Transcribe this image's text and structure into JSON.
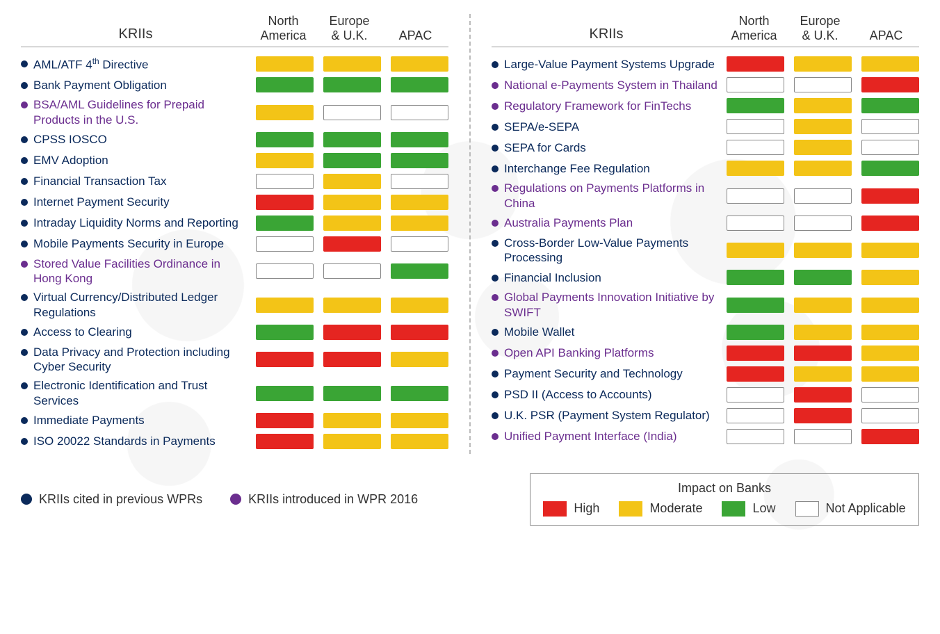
{
  "colors": {
    "high": "#e52521",
    "moderate": "#f3c417",
    "low": "#3aa535",
    "na": "#ffffff",
    "bullet_prev": "#0b2a5b",
    "bullet_new": "#6b2e8f",
    "text_prev": "#0b2a5b",
    "text_new": "#6b2e8f"
  },
  "headers": {
    "krii": "KRIIs",
    "regions": [
      "North\nAmerica",
      "Europe\n& U.K.",
      "APAC"
    ]
  },
  "left": [
    {
      "label": "AML/ATF 4^th Directive",
      "type": "prev",
      "cells": [
        "moderate",
        "moderate",
        "moderate"
      ]
    },
    {
      "label": "Bank Payment Obligation",
      "type": "prev",
      "cells": [
        "low",
        "low",
        "low"
      ]
    },
    {
      "label": "BSA/AML Guidelines for Prepaid Products in the U.S.",
      "type": "new",
      "cells": [
        "moderate",
        "na",
        "na"
      ]
    },
    {
      "label": "CPSS IOSCO",
      "type": "prev",
      "cells": [
        "low",
        "low",
        "low"
      ]
    },
    {
      "label": "EMV Adoption",
      "type": "prev",
      "cells": [
        "moderate",
        "low",
        "low"
      ]
    },
    {
      "label": "Financial Transaction Tax",
      "type": "prev",
      "cells": [
        "na",
        "moderate",
        "na"
      ]
    },
    {
      "label": "Internet Payment Security",
      "type": "prev",
      "cells": [
        "high",
        "moderate",
        "moderate"
      ]
    },
    {
      "label": "Intraday Liquidity Norms and Reporting",
      "type": "prev",
      "cells": [
        "low",
        "moderate",
        "moderate"
      ]
    },
    {
      "label": "Mobile Payments Security in Europe",
      "type": "prev",
      "cells": [
        "na",
        "high",
        "na"
      ]
    },
    {
      "label": "Stored Value Facilities Ordinance in Hong Kong",
      "type": "new",
      "cells": [
        "na",
        "na",
        "low"
      ]
    },
    {
      "label": "Virtual Currency/Distributed Ledger Regulations",
      "type": "prev",
      "cells": [
        "moderate",
        "moderate",
        "moderate"
      ]
    },
    {
      "label": "Access to Clearing",
      "type": "prev",
      "cells": [
        "low",
        "high",
        "high"
      ]
    },
    {
      "label": "Data Privacy and Protection including Cyber Security",
      "type": "prev",
      "cells": [
        "high",
        "high",
        "moderate"
      ]
    },
    {
      "label": "Electronic Identification and Trust Services",
      "type": "prev",
      "cells": [
        "low",
        "low",
        "low"
      ]
    },
    {
      "label": "Immediate Payments",
      "type": "prev",
      "cells": [
        "high",
        "moderate",
        "moderate"
      ]
    },
    {
      "label": "ISO 20022 Standards in Payments",
      "type": "prev",
      "cells": [
        "high",
        "moderate",
        "moderate"
      ]
    }
  ],
  "right": [
    {
      "label": "Large-Value Payment Systems Upgrade",
      "type": "prev",
      "cells": [
        "high",
        "moderate",
        "moderate"
      ]
    },
    {
      "label": "National e-Payments System in Thailand",
      "type": "new",
      "cells": [
        "na",
        "na",
        "high"
      ]
    },
    {
      "label": "Regulatory Framework for FinTechs",
      "type": "new",
      "cells": [
        "low",
        "moderate",
        "low"
      ]
    },
    {
      "label": "SEPA/e-SEPA",
      "type": "prev",
      "cells": [
        "na",
        "moderate",
        "na"
      ]
    },
    {
      "label": "SEPA for Cards",
      "type": "prev",
      "cells": [
        "na",
        "moderate",
        "na"
      ]
    },
    {
      "label": "Interchange Fee Regulation",
      "type": "prev",
      "cells": [
        "moderate",
        "moderate",
        "low"
      ]
    },
    {
      "label": "Regulations on Payments Platforms in China",
      "type": "new",
      "cells": [
        "na",
        "na",
        "high"
      ]
    },
    {
      "label": "Australia Payments Plan",
      "type": "new",
      "cells": [
        "na",
        "na",
        "high"
      ]
    },
    {
      "label": "Cross-Border Low-Value Payments Processing",
      "type": "prev",
      "cells": [
        "moderate",
        "moderate",
        "moderate"
      ]
    },
    {
      "label": "Financial Inclusion",
      "type": "prev",
      "cells": [
        "low",
        "low",
        "moderate"
      ]
    },
    {
      "label": "Global Payments Innovation Initiative by SWIFT",
      "type": "new",
      "cells": [
        "low",
        "moderate",
        "moderate"
      ]
    },
    {
      "label": "Mobile Wallet",
      "type": "prev",
      "cells": [
        "low",
        "moderate",
        "moderate"
      ]
    },
    {
      "label": "Open API Banking Platforms",
      "type": "new",
      "cells": [
        "high",
        "high",
        "moderate"
      ]
    },
    {
      "label": "Payment Security and Technology",
      "type": "prev",
      "cells": [
        "high",
        "moderate",
        "moderate"
      ]
    },
    {
      "label": "PSD II (Access to Accounts)",
      "type": "prev",
      "cells": [
        "na",
        "high",
        "na"
      ]
    },
    {
      "label": "U.K. PSR (Payment System Regulator)",
      "type": "prev",
      "cells": [
        "na",
        "high",
        "na"
      ]
    },
    {
      "label": "Unified Payment Interface (India)",
      "type": "new",
      "cells": [
        "na",
        "na",
        "high"
      ]
    }
  ],
  "footer": {
    "prev_label": "KRIIs cited in previous WPRs",
    "new_label": "KRIIs introduced in WPR 2016"
  },
  "legend": {
    "title": "Impact on Banks",
    "items": [
      {
        "key": "high",
        "label": "High"
      },
      {
        "key": "moderate",
        "label": "Moderate"
      },
      {
        "key": "low",
        "label": "Low"
      },
      {
        "key": "na",
        "label": "Not Applicable"
      }
    ]
  }
}
